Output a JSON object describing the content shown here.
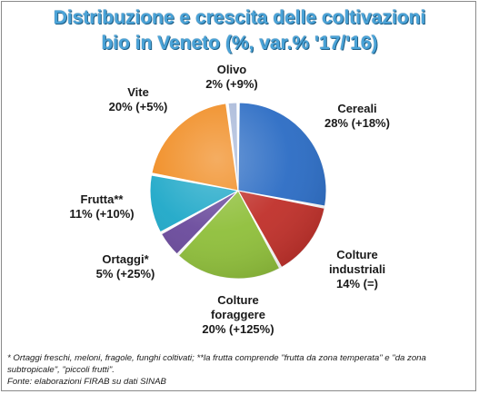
{
  "title": {
    "line1": "Distribuzione  e crescita delle coltivazioni",
    "line2": "bio in Veneto (%, var.% '17/'16)"
  },
  "chart_data": {
    "type": "pie",
    "title": "Distribuzione  e crescita delle coltivazioni bio in Veneto (%, var.% '17/'16)",
    "slices": [
      {
        "label": "Cereali",
        "lines": [
          "Cereali",
          "28% (+18%)"
        ],
        "value": 28,
        "growth": "+18%",
        "color": "#2b6cc4"
      },
      {
        "label": "Colture industriali",
        "lines": [
          "Colture",
          "industriali",
          "14% (=)"
        ],
        "value": 14,
        "growth": "=",
        "color": "#c0302a"
      },
      {
        "label": "Colture foraggere",
        "lines": [
          "Colture",
          "foraggere",
          "20% (+125%)"
        ],
        "value": 20,
        "growth": "+125%",
        "color": "#8fbf3a"
      },
      {
        "label": "Ortaggi*",
        "lines": [
          "Ortaggi*",
          "5% (+25%)"
        ],
        "value": 5,
        "growth": "+25%",
        "color": "#6a4a9c"
      },
      {
        "label": "Frutta**",
        "lines": [
          "Frutta**",
          "11% (+10%)"
        ],
        "value": 11,
        "growth": "+10%",
        "color": "#1ea8c8"
      },
      {
        "label": "Vite",
        "lines": [
          "Vite",
          "20% (+5%)"
        ],
        "value": 20,
        "growth": "+5%",
        "color": "#f08a1e"
      },
      {
        "label": "Olivo",
        "lines": [
          "Olivo",
          "2% (+9%)"
        ],
        "value": 2,
        "growth": "+9%",
        "color": "#a9b9d9"
      }
    ]
  },
  "footnote": {
    "line1": "* Ortaggi freschi, meloni, fragole, funghi coltivati; **la frutta comprende \"frutta da zona temperata\" e \"da zona",
    "line2": "subtropicale\", \"piccoli frutti\".",
    "line3": "Fonte: elaborazioni FIRAB su dati SINAB"
  }
}
